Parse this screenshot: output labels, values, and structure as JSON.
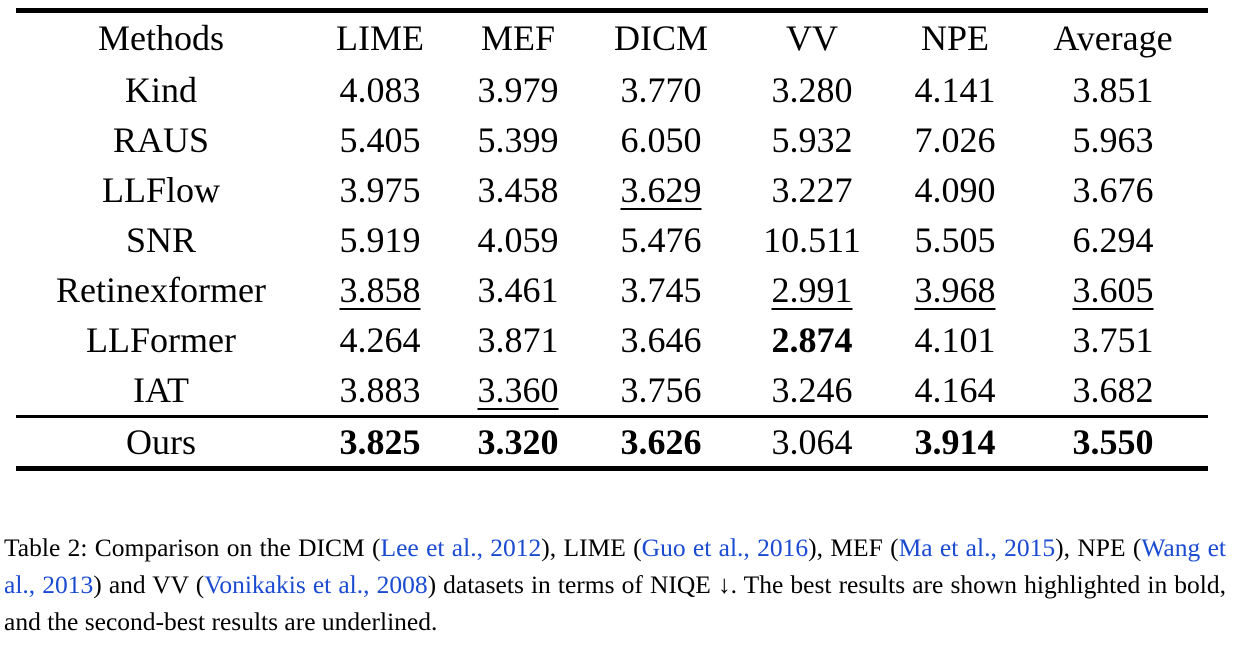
{
  "table": {
    "columns": [
      "Methods",
      "LIME",
      "MEF",
      "DICM",
      "VV",
      "NPE",
      "Average"
    ],
    "rows": [
      {
        "method": "Kind",
        "values": [
          "4.083",
          "3.979",
          "3.770",
          "3.280",
          "4.141",
          "3.851"
        ],
        "style": [
          "",
          "",
          "",
          "",
          "",
          ""
        ]
      },
      {
        "method": "RAUS",
        "values": [
          "5.405",
          "5.399",
          "6.050",
          "5.932",
          "7.026",
          "5.963"
        ],
        "style": [
          "",
          "",
          "",
          "",
          "",
          ""
        ]
      },
      {
        "method": "LLFlow",
        "values": [
          "3.975",
          "3.458",
          "3.629",
          "3.227",
          "4.090",
          "3.676"
        ],
        "style": [
          "",
          "",
          "underline",
          "",
          "",
          ""
        ]
      },
      {
        "method": "SNR",
        "values": [
          "5.919",
          "4.059",
          "5.476",
          "10.511",
          "5.505",
          "6.294"
        ],
        "style": [
          "",
          "",
          "",
          "",
          "",
          ""
        ]
      },
      {
        "method": "Retinexformer",
        "values": [
          "3.858",
          "3.461",
          "3.745",
          "2.991",
          "3.968",
          "3.605"
        ],
        "style": [
          "underline",
          "",
          "",
          "underline",
          "underline",
          "underline"
        ]
      },
      {
        "method": "LLFormer",
        "values": [
          "4.264",
          "3.871",
          "3.646",
          "2.874",
          "4.101",
          "3.751"
        ],
        "style": [
          "",
          "",
          "",
          "bold",
          "",
          ""
        ]
      },
      {
        "method": "IAT",
        "values": [
          "3.883",
          "3.360",
          "3.756",
          "3.246",
          "4.164",
          "3.682"
        ],
        "style": [
          "",
          "underline",
          "",
          "",
          "",
          ""
        ]
      },
      {
        "method": "Ours",
        "values": [
          "3.825",
          "3.320",
          "3.626",
          "3.064",
          "3.914",
          "3.550"
        ],
        "style": [
          "bold",
          "bold",
          "bold",
          "",
          "bold",
          "bold"
        ]
      }
    ]
  },
  "caption": {
    "t1": "Table 2: Comparison on the DICM (",
    "l1": "Lee et al., 2012",
    "t2": "), LIME (",
    "l2": "Guo et al., 2016",
    "t3": "), MEF (",
    "l3": "Ma et al., 2015",
    "t4": "), NPE (",
    "l4": "Wang et al., 2013",
    "t5": ") and VV (",
    "l5": "Vonikakis et al., 2008",
    "t6": ") datasets in terms of NIQE ↓. The best results are shown highlighted in bold, and the second-best results are underlined.",
    "link_color": "#1a4bd1"
  }
}
